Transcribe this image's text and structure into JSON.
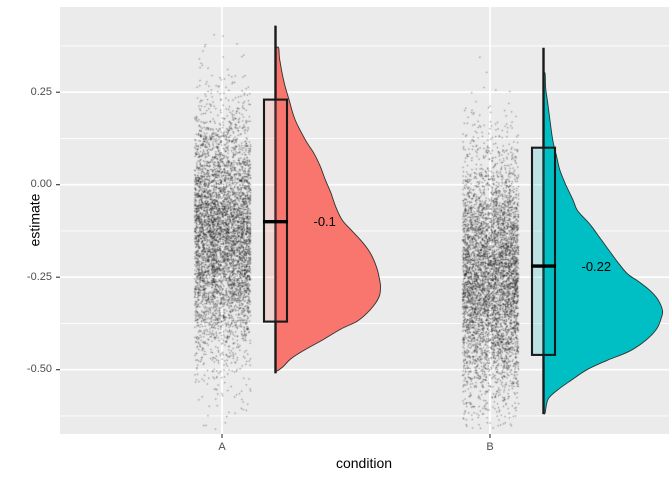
{
  "figure": {
    "y_axis_title": "estimate",
    "x_axis_title": "condition",
    "y_tick_labels": [
      "0.25",
      "0.00",
      "-0.25",
      "-0.50"
    ],
    "x_tick_labels": [
      "A",
      "B"
    ],
    "panel_bg": "#EBEBEB",
    "grid_color": "#FFFFFF",
    "axis_text_color": "#4d4d4d",
    "tick_mark_color": "#333333",
    "point_color": "#000000"
  },
  "chart_data": {
    "type": "raincloud (jittered points + boxplot + half-violin density), ggplot2 theme_gray",
    "x": {
      "label": "condition",
      "categories": [
        "A",
        "B"
      ]
    },
    "y": {
      "label": "estimate",
      "ticks": [
        0.25,
        0.0,
        -0.25,
        -0.5
      ],
      "minor_ticks": [
        0.375,
        0.125,
        -0.125,
        -0.375,
        -0.625
      ],
      "range": [
        -0.68,
        0.48
      ],
      "grid": true
    },
    "legend": "none",
    "groups": [
      {
        "condition": "A",
        "fill": "#F8766D",
        "median_label": "-0.1",
        "boxplot": {
          "whisker_low": -0.51,
          "q1": -0.37,
          "median": -0.1,
          "q3": 0.23,
          "whisker_high": 0.43
        },
        "jitter": {
          "n": 5200,
          "mean": -0.13,
          "sd": 0.165
        },
        "density_profile": [
          [
            0.37,
            0.02
          ],
          [
            0.34,
            0.03
          ],
          [
            0.28,
            0.07
          ],
          [
            0.23,
            0.12
          ],
          [
            0.175,
            0.18
          ],
          [
            0.12,
            0.28
          ],
          [
            0.085,
            0.36
          ],
          [
            0.05,
            0.42
          ],
          [
            0.013,
            0.47
          ],
          [
            -0.02,
            0.52
          ],
          [
            -0.06,
            0.57
          ],
          [
            -0.095,
            0.63
          ],
          [
            -0.12,
            0.71
          ],
          [
            -0.15,
            0.81
          ],
          [
            -0.175,
            0.88
          ],
          [
            -0.2,
            0.93
          ],
          [
            -0.23,
            0.97
          ],
          [
            -0.255,
            0.99
          ],
          [
            -0.275,
            1.0
          ],
          [
            -0.3,
            0.99
          ],
          [
            -0.325,
            0.94
          ],
          [
            -0.35,
            0.86
          ],
          [
            -0.37,
            0.77
          ],
          [
            -0.39,
            0.62
          ],
          [
            -0.42,
            0.44
          ],
          [
            -0.445,
            0.28
          ],
          [
            -0.47,
            0.14
          ],
          [
            -0.49,
            0.07
          ],
          [
            -0.503,
            0.01
          ]
        ]
      },
      {
        "condition": "B",
        "fill": "#00BFC4",
        "median_label": "-0.22",
        "boxplot": {
          "whisker_low": -0.62,
          "q1": -0.46,
          "median": -0.22,
          "q3": 0.1,
          "whisker_high": 0.37
        },
        "jitter": {
          "n": 5200,
          "mean": -0.25,
          "sd": 0.162
        },
        "density_profile": [
          [
            0.3,
            0.005
          ],
          [
            0.26,
            0.01
          ],
          [
            0.215,
            0.03
          ],
          [
            0.165,
            0.05
          ],
          [
            0.12,
            0.07
          ],
          [
            0.08,
            0.1
          ],
          [
            0.04,
            0.13
          ],
          [
            0.0,
            0.18
          ],
          [
            -0.04,
            0.24
          ],
          [
            -0.07,
            0.28
          ],
          [
            -0.105,
            0.38
          ],
          [
            -0.135,
            0.45
          ],
          [
            -0.17,
            0.53
          ],
          [
            -0.205,
            0.61
          ],
          [
            -0.24,
            0.7
          ],
          [
            -0.26,
            0.79
          ],
          [
            -0.285,
            0.89
          ],
          [
            -0.31,
            0.96
          ],
          [
            -0.34,
            1.0
          ],
          [
            -0.36,
            0.99
          ],
          [
            -0.39,
            0.95
          ],
          [
            -0.42,
            0.86
          ],
          [
            -0.45,
            0.72
          ],
          [
            -0.475,
            0.53
          ],
          [
            -0.5,
            0.36
          ],
          [
            -0.53,
            0.22
          ],
          [
            -0.555,
            0.11
          ],
          [
            -0.58,
            0.03
          ],
          [
            -0.617,
            0.005
          ]
        ]
      }
    ]
  }
}
